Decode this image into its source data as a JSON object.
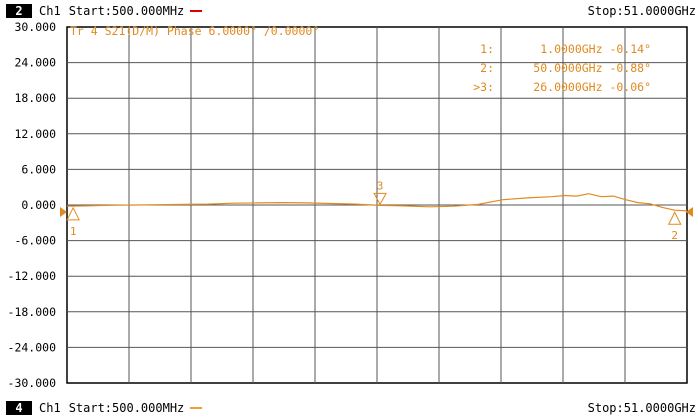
{
  "top_bar": {
    "channel_badge": "2",
    "channel_label": "Ch1",
    "start": "Start:500.000MHz",
    "stop": "Stop:51.0000GHz",
    "indicator_color": "#e00000"
  },
  "bottom_bar": {
    "channel_badge": "4",
    "channel_label": "Ch1",
    "start": "Start:500.000MHz",
    "stop": "Stop:51.0000GHz",
    "indicator_color": "#f0a030"
  },
  "trace_header": "Tr 4  S21(D/M) Phase 6.0000° /0.0000°",
  "trace_color": "#e08a20",
  "y_ticks": [
    "30.000",
    "24.000",
    "18.000",
    "12.000",
    "6.000",
    "0.000",
    "-6.000",
    "-12.000",
    "-18.000",
    "-24.000",
    "-30.000"
  ],
  "markers": [
    {
      "label": "1:",
      "value": "1.0000GHz -0.14°"
    },
    {
      "label": "2:",
      "value": "50.0000GHz -0.88°"
    },
    {
      "label": ">3:",
      "value": "26.0000GHz -0.06°"
    }
  ],
  "marker_flags": [
    {
      "id": "1",
      "freq_ghz": 1.0,
      "phase_deg": -0.14,
      "below": true
    },
    {
      "id": "2",
      "freq_ghz": 50.0,
      "phase_deg": -0.88,
      "below": true
    },
    {
      "id": "3",
      "freq_ghz": 26.0,
      "phase_deg": -0.06,
      "below": false
    }
  ],
  "chart_data": {
    "type": "line",
    "xlim_ghz": [
      0.5,
      51.0
    ],
    "ylim": [
      -30,
      30
    ],
    "y_divisions": 10,
    "x_divisions": 10,
    "reference_level": 0,
    "series": [
      {
        "x": [
          0.5,
          2,
          4,
          6,
          8,
          10,
          12,
          14,
          16,
          18,
          20,
          22,
          24,
          26,
          28,
          30,
          32,
          34,
          36,
          38,
          40,
          41,
          42,
          43,
          44,
          45,
          46,
          47,
          48,
          49,
          50,
          51
        ],
        "values": [
          -0.2,
          -0.15,
          -0.05,
          0.0,
          0.05,
          0.1,
          0.15,
          0.3,
          0.35,
          0.4,
          0.35,
          0.25,
          0.15,
          -0.06,
          -0.15,
          -0.3,
          -0.2,
          0.1,
          0.9,
          1.2,
          1.4,
          1.6,
          1.5,
          1.9,
          1.4,
          1.5,
          0.9,
          0.4,
          0.2,
          -0.4,
          -0.88,
          -1.0
        ]
      }
    ]
  }
}
